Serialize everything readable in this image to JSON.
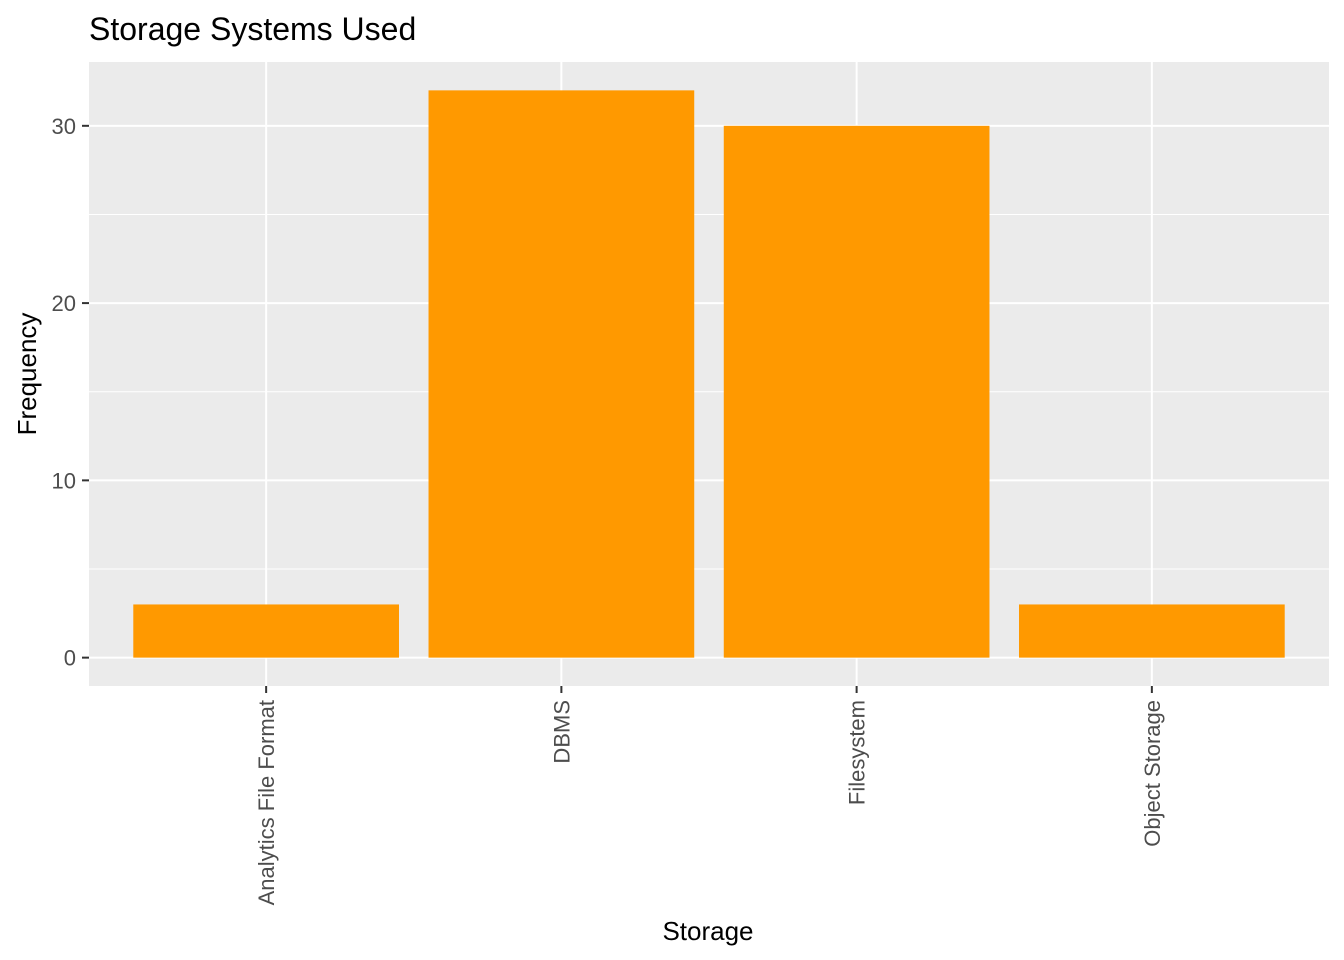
{
  "chart_data": {
    "type": "bar",
    "title": "Storage Systems Used",
    "xlabel": "Storage",
    "ylabel": "Frequency",
    "categories": [
      "Analytics File Format",
      "DBMS",
      "Filesystem",
      "Object Storage"
    ],
    "values": [
      3,
      32,
      30,
      3
    ],
    "ylim": [
      -1.6,
      33.6
    ],
    "yticks": [
      0,
      10,
      20,
      30
    ],
    "grid": true,
    "legend": "none",
    "colors": {
      "bar": "#FF9900",
      "panel_background": "#EBEBEB",
      "grid": "#FFFFFF",
      "tick_label": "#4D4D4D"
    }
  }
}
